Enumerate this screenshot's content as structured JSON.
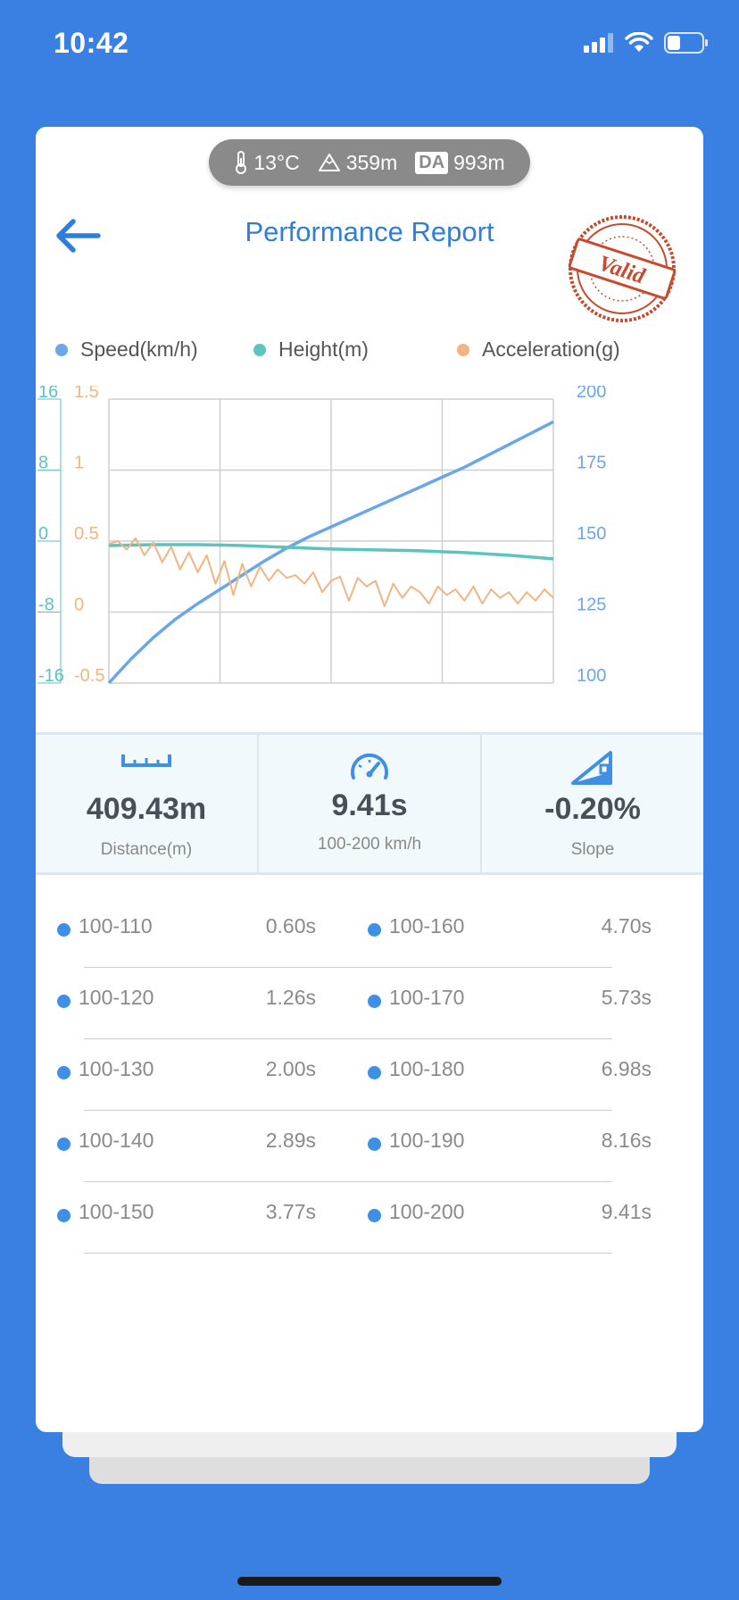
{
  "status_bar": {
    "time": "10:42"
  },
  "conditions": {
    "temperature": "13°C",
    "altitude": "359m",
    "da_badge": "DA",
    "density_altitude": "993m"
  },
  "header": {
    "title": "Performance Report",
    "stamp_text": "Valid"
  },
  "legend": [
    {
      "label": "Speed(km/h)",
      "color": "#6aa6e8"
    },
    {
      "label": "Height(m)",
      "color": "#5cc3bd"
    },
    {
      "label": "Acceleration(g)",
      "color": "#f2b483"
    }
  ],
  "chart_data": {
    "type": "line",
    "grid": true,
    "x_divisions": 4,
    "axes": {
      "height_left": {
        "ticks": [
          "16",
          "8",
          "0",
          "-8",
          "-16"
        ],
        "range": [
          -16,
          16
        ],
        "color": "#5cc3bd"
      },
      "acceleration_left": {
        "ticks": [
          "1.5",
          "1",
          "0.5",
          "0",
          "-0.5"
        ],
        "range": [
          -0.5,
          1.5
        ],
        "color": "#f2b483"
      },
      "speed_right": {
        "ticks": [
          "200",
          "175",
          "150",
          "125",
          "100"
        ],
        "range": [
          100,
          200
        ],
        "color": "#6aa6e8"
      }
    },
    "series": [
      {
        "name": "Speed(km/h)",
        "axis": "speed_right",
        "x": [
          0,
          5,
          10,
          15,
          20,
          25,
          30,
          35,
          40,
          45,
          50,
          55,
          60,
          65,
          70,
          75,
          80,
          85,
          90,
          95,
          100
        ],
        "y": [
          100,
          108.5,
          116,
          122.5,
          128,
          133,
          138,
          143,
          147.5,
          151.5,
          155,
          158.5,
          162,
          165.5,
          169,
          172.5,
          176,
          180,
          184,
          188,
          192
        ]
      },
      {
        "name": "Height(m)",
        "axis": "height_left",
        "x": [
          0,
          10,
          20,
          30,
          40,
          50,
          60,
          70,
          80,
          90,
          100
        ],
        "y": [
          -0.5,
          -0.4,
          -0.4,
          -0.5,
          -0.7,
          -0.9,
          -1.0,
          -1.1,
          -1.3,
          -1.6,
          -2.0
        ]
      },
      {
        "name": "Acceleration(g)",
        "axis": "acceleration_left",
        "x": [
          0,
          2,
          4,
          6,
          8,
          10,
          12,
          14,
          16,
          18,
          20,
          22,
          24,
          26,
          28,
          30,
          32,
          34,
          36,
          38,
          40,
          42,
          44,
          46,
          48,
          50,
          52,
          54,
          56,
          58,
          60,
          62,
          64,
          66,
          68,
          70,
          72,
          74,
          76,
          78,
          80,
          82,
          84,
          86,
          88,
          90,
          92,
          94,
          96,
          98,
          100
        ],
        "y": [
          0.48,
          0.5,
          0.44,
          0.52,
          0.4,
          0.49,
          0.35,
          0.46,
          0.3,
          0.42,
          0.28,
          0.4,
          0.2,
          0.36,
          0.12,
          0.34,
          0.18,
          0.32,
          0.22,
          0.3,
          0.24,
          0.26,
          0.2,
          0.28,
          0.14,
          0.22,
          0.25,
          0.08,
          0.24,
          0.18,
          0.22,
          0.04,
          0.2,
          0.1,
          0.18,
          0.14,
          0.06,
          0.18,
          0.12,
          0.16,
          0.08,
          0.18,
          0.06,
          0.16,
          0.1,
          0.14,
          0.06,
          0.14,
          0.08,
          0.16,
          0.1
        ]
      }
    ]
  },
  "stats": [
    {
      "value": "409.43m",
      "label": "Distance(m)",
      "icon": "ruler-icon"
    },
    {
      "value": "9.41s",
      "label": "100-200 km/h",
      "icon": "speedometer-icon"
    },
    {
      "value": "-0.20%",
      "label": "Slope",
      "icon": "slope-icon"
    }
  ],
  "splits": [
    {
      "label": "100-110",
      "time": "0.60s"
    },
    {
      "label": "100-120",
      "time": "1.26s"
    },
    {
      "label": "100-130",
      "time": "2.00s"
    },
    {
      "label": "100-140",
      "time": "2.89s"
    },
    {
      "label": "100-150",
      "time": "3.77s"
    },
    {
      "label": "100-160",
      "time": "4.70s"
    },
    {
      "label": "100-170",
      "time": "5.73s"
    },
    {
      "label": "100-180",
      "time": "6.98s"
    },
    {
      "label": "100-190",
      "time": "8.16s"
    },
    {
      "label": "100-200",
      "time": "9.41s"
    }
  ]
}
